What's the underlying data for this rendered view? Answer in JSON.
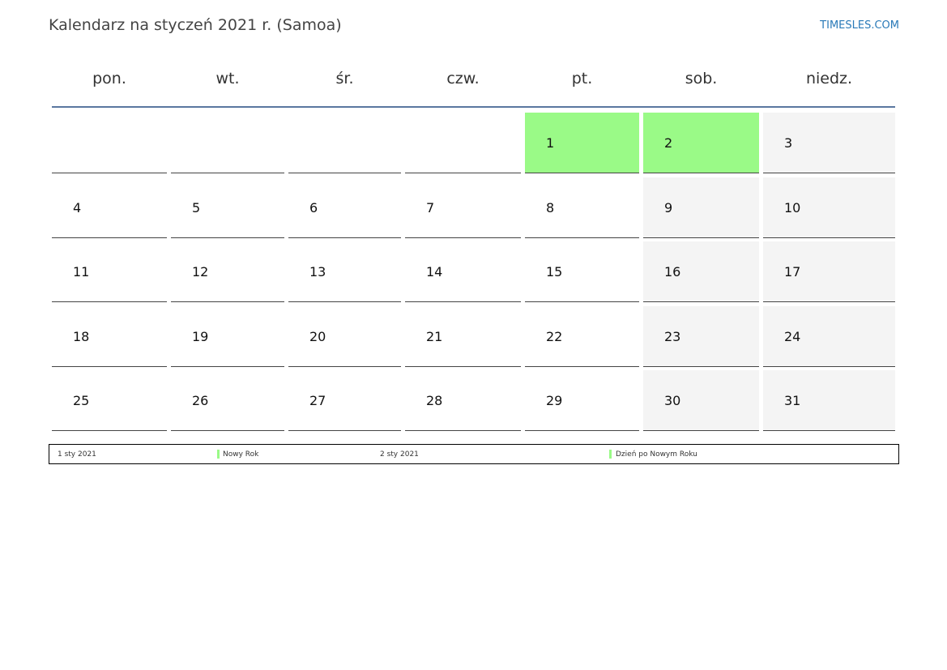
{
  "header": {
    "title": "Kalendarz na styczeń 2021 r. (Samoa)",
    "site": "TIMESLES.COM"
  },
  "weekdays": [
    "pon.",
    "wt.",
    "śr.",
    "czw.",
    "pt.",
    "sob.",
    "niedz."
  ],
  "holiday_color": "#9afa87",
  "weekend_color": "#f4f4f4",
  "weekend_columns": [
    5,
    6
  ],
  "weeks": [
    [
      null,
      null,
      null,
      null,
      {
        "day": 1,
        "holiday": true
      },
      {
        "day": 2,
        "holiday": true
      },
      {
        "day": 3
      }
    ],
    [
      {
        "day": 4
      },
      {
        "day": 5
      },
      {
        "day": 6
      },
      {
        "day": 7
      },
      {
        "day": 8
      },
      {
        "day": 9
      },
      {
        "day": 10
      }
    ],
    [
      {
        "day": 11
      },
      {
        "day": 12
      },
      {
        "day": 13
      },
      {
        "day": 14
      },
      {
        "day": 15
      },
      {
        "day": 16
      },
      {
        "day": 17
      }
    ],
    [
      {
        "day": 18
      },
      {
        "day": 19
      },
      {
        "day": 20
      },
      {
        "day": 21
      },
      {
        "day": 22
      },
      {
        "day": 23
      },
      {
        "day": 24
      }
    ],
    [
      {
        "day": 25
      },
      {
        "day": 26
      },
      {
        "day": 27
      },
      {
        "day": 28
      },
      {
        "day": 29
      },
      {
        "day": 30
      },
      {
        "day": 31
      }
    ]
  ],
  "holidays": [
    {
      "date": "1 sty 2021",
      "name": "Nowy Rok"
    },
    {
      "date": "2 sty 2021",
      "name": "Dzień po Nowym Roku"
    }
  ]
}
